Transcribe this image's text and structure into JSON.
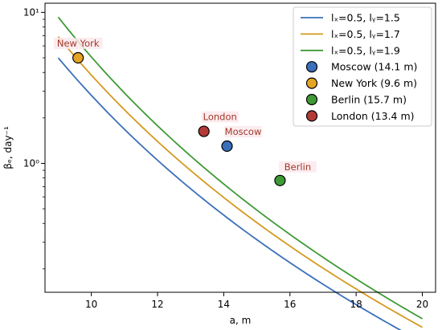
{
  "chart_data": {
    "type": "line",
    "xlabel": "a, m",
    "ylabel": "βₑ, day⁻¹",
    "xlim": [
      8.6,
      20.4
    ],
    "ylim": [
      0.14,
      11.5
    ],
    "yscale": "log",
    "x_ticks": [
      10,
      12,
      14,
      16,
      18,
      20
    ],
    "y_ticks": [
      {
        "value": 1,
        "label": "10⁰"
      },
      {
        "value": 10,
        "label": "10¹"
      }
    ],
    "grid": false,
    "legend_position": "top-right",
    "series": [
      {
        "name": "lₓ=0.5, lᵧ=1.5",
        "color": "#3a6fba",
        "x_range": [
          9,
          20
        ],
        "y_at_9": 5.0,
        "exponent": 5.43
      },
      {
        "name": "lₓ=0.5, lᵧ=1.7",
        "color": "#d49a1f",
        "x_range": [
          9,
          20
        ],
        "y_at_9": 6.9,
        "exponent": 5.55
      },
      {
        "name": "lₓ=0.5, lᵧ=1.9",
        "color": "#3f9a35",
        "x_range": [
          9,
          20
        ],
        "y_at_9": 9.3,
        "exponent": 5.76
      }
    ],
    "points": [
      {
        "name": "Moscow (14.1 m)",
        "label": "Moscow",
        "x": 14.1,
        "y": 1.3,
        "color": "#3a6fba"
      },
      {
        "name": "New York (9.6 m)",
        "label": "New York",
        "x": 9.6,
        "y": 5.0,
        "color": "#e3a425"
      },
      {
        "name": "Berlin (15.7 m)",
        "label": "Berlin",
        "x": 15.7,
        "y": 0.77,
        "color": "#3f9a35"
      },
      {
        "name": "London (13.4 m)",
        "label": "London",
        "x": 13.4,
        "y": 1.63,
        "color": "#b33a36"
      }
    ],
    "annotation_color": "#a03a2a"
  }
}
